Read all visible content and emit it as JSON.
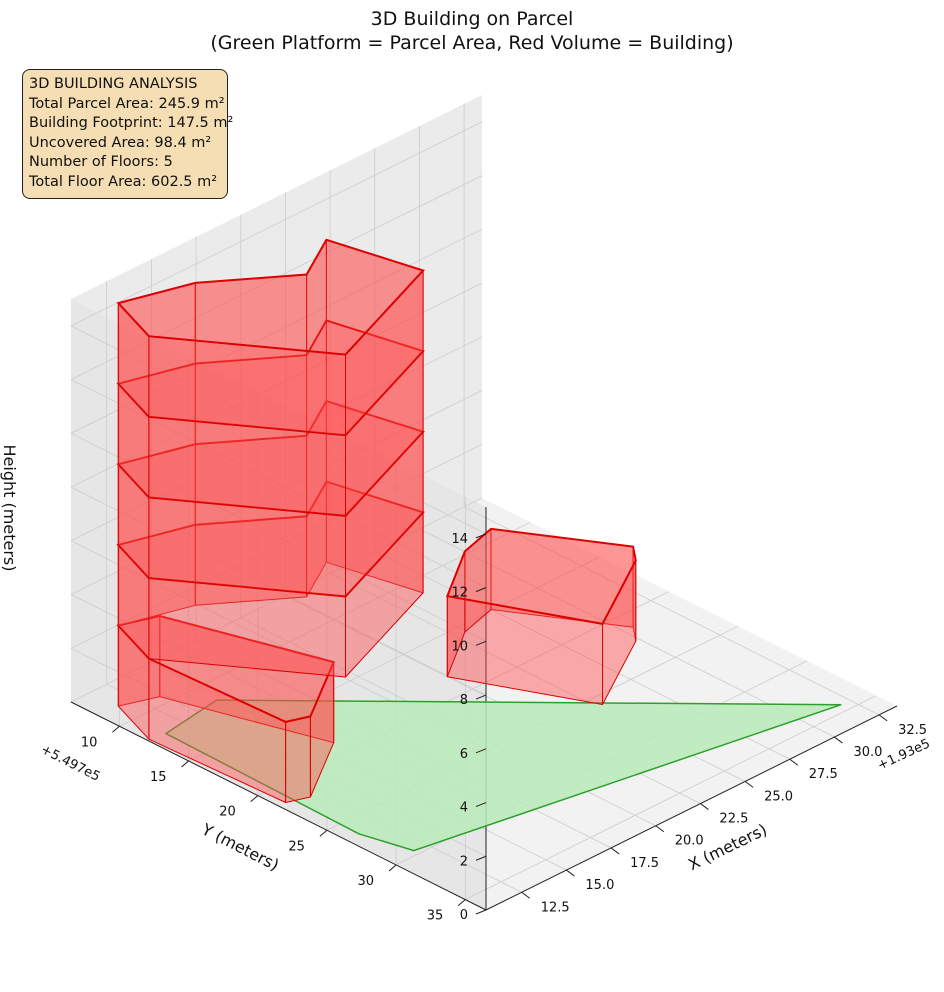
{
  "title_line1": "3D Building on Parcel",
  "title_line2": "(Green Platform = Parcel Area, Red Volume = Building)",
  "info": {
    "heading": "3D BUILDING ANALYSIS",
    "total_parcel_area": "Total Parcel Area: 245.9 m²",
    "building_footprint": "Building Footprint: 147.5 m²",
    "uncovered_area": "Uncovered Area: 98.4 m²",
    "floors": "Number of Floors: 5",
    "total_floor_area": "Total Floor Area: 602.5 m²"
  },
  "colors": {
    "parcel_fill": "#b8ebb8",
    "parcel_edge": "#2ca02c",
    "building_fill": "#ff4d4d",
    "building_edge": "#dd0000",
    "pane": "#f2f2f2",
    "grid": "#cccccc"
  },
  "chart_data": {
    "type": "3d-polygons",
    "title": "3D Building on Parcel\n(Green Platform = Parcel Area, Red Volume = Building)",
    "xlabel": "X (meters)",
    "ylabel": "Y (meters)",
    "zlabel": "Height (meters)",
    "x_offset_label": "+1.93e5",
    "y_offset_label": "+5.497e5",
    "xlim": [
      10.5,
      33.5
    ],
    "ylim": [
      6.5,
      36.5
    ],
    "zlim": [
      0,
      15
    ],
    "x_ticks": [
      "12.5",
      "15.0",
      "17.5",
      "20.0",
      "22.5",
      "25.0",
      "27.5",
      "30.0",
      "32.5"
    ],
    "y_ticks": [
      "10",
      "15",
      "20",
      "25",
      "30",
      "35"
    ],
    "z_ticks": [
      "0",
      "2",
      "4",
      "6",
      "8",
      "10",
      "12",
      "14"
    ],
    "grid": true,
    "parcel": {
      "name": "Parcel Area",
      "height": 0,
      "polygon_xy": [
        [
          14.7,
          11.6
        ],
        [
          32.0,
          34.4
        ],
        [
          11.8,
          29.6
        ],
        [
          11.2,
          26.4
        ],
        [
          11.4,
          12.2
        ]
      ]
    },
    "floor_height": 3,
    "floors": 5,
    "building_outlines": [
      {
        "floor": 1,
        "z_base": 0,
        "z_top": 3,
        "outline_xy": [
          [
            27.5,
            14.9
          ],
          [
            30.5,
            21.3
          ],
          [
            29.8,
            22.4
          ],
          [
            25.3,
            25.8
          ],
          [
            22.5,
            18.2
          ],
          [
            25.5,
            15.6
          ]
        ]
      },
      {
        "floor": 1,
        "z_base": 0,
        "z_top": 3,
        "outline_xy": [
          [
            11.6,
            8.5
          ],
          [
            13.3,
            9.3
          ],
          [
            15.6,
            18.9
          ],
          [
            11.9,
            22.0
          ],
          [
            10.9,
            21.5
          ],
          [
            10.6,
            12.0
          ]
        ]
      },
      {
        "floor": 2,
        "z_base": 3,
        "z_top": 6,
        "outline_xy": [
          [
            11.6,
            8.5
          ],
          [
            14.9,
            9.8
          ],
          [
            18.5,
            13.2
          ],
          [
            21.0,
            11.4
          ],
          [
            22.0,
            17.1
          ],
          [
            15.1,
            20.4
          ],
          [
            10.6,
            12.0
          ]
        ]
      },
      {
        "floor": 3,
        "z_base": 6,
        "z_top": 9,
        "outline_xy": [
          [
            11.6,
            8.5
          ],
          [
            14.9,
            9.8
          ],
          [
            18.5,
            13.2
          ],
          [
            21.0,
            11.4
          ],
          [
            22.0,
            17.1
          ],
          [
            15.1,
            20.4
          ],
          [
            10.6,
            12.0
          ]
        ]
      },
      {
        "floor": 4,
        "z_base": 9,
        "z_top": 12,
        "outline_xy": [
          [
            11.6,
            8.5
          ],
          [
            14.9,
            9.8
          ],
          [
            18.5,
            13.2
          ],
          [
            21.0,
            11.4
          ],
          [
            22.0,
            17.1
          ],
          [
            15.1,
            20.4
          ],
          [
            10.6,
            12.0
          ]
        ]
      },
      {
        "floor": 5,
        "z_base": 12,
        "z_top": 15,
        "outline_xy": [
          [
            11.6,
            8.5
          ],
          [
            14.9,
            9.8
          ],
          [
            18.5,
            13.2
          ],
          [
            21.0,
            11.4
          ],
          [
            22.0,
            17.1
          ],
          [
            15.1,
            20.4
          ],
          [
            10.6,
            12.0
          ]
        ]
      }
    ]
  }
}
